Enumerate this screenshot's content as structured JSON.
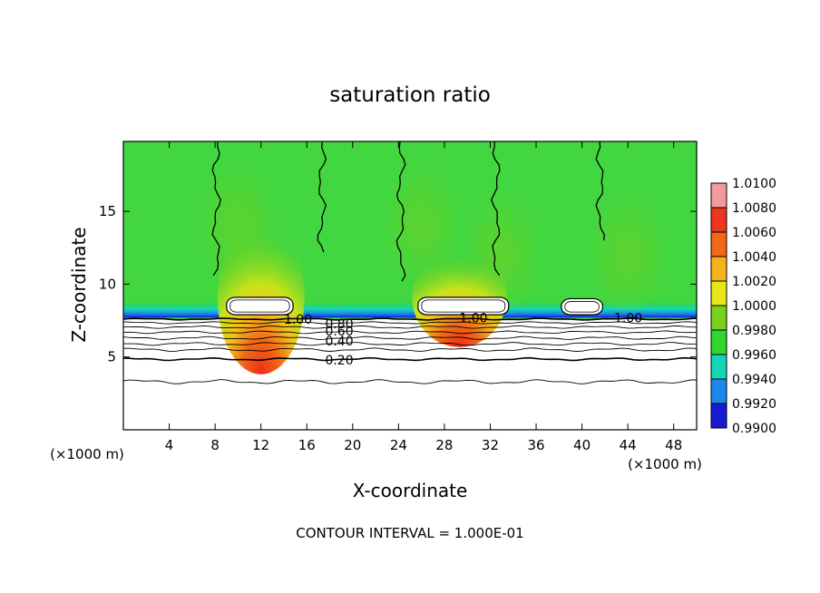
{
  "chart_data": {
    "type": "heatmap",
    "title": "saturation ratio",
    "xlabel": "X-coordinate",
    "ylabel": "Z-coordinate",
    "x_unit": "(×1000 m)",
    "x_unit_right": "(×1000 m)",
    "xlim": [
      0,
      50
    ],
    "ylim": [
      0,
      19.8
    ],
    "x_ticks": [
      4,
      8,
      12,
      16,
      20,
      24,
      28,
      32,
      36,
      40,
      44,
      48
    ],
    "y_ticks": [
      5,
      10,
      15
    ],
    "footer": "CONTOUR INTERVAL = 1.000E-01",
    "colorbar": {
      "levels": [
        "1.0100",
        "1.0080",
        "1.0060",
        "1.0040",
        "1.0020",
        "1.0000",
        "0.9980",
        "0.9960",
        "0.9940",
        "0.9920",
        "0.9900"
      ],
      "colors": [
        "#f59a9a",
        "#ee3520",
        "#f06818",
        "#f7b21a",
        "#e6e61a",
        "#7ad11a",
        "#2ed62e",
        "#14d6b4",
        "#1a86ee",
        "#1a1ad2",
        "#320a96"
      ]
    },
    "contour_labels": [
      {
        "text": "1.00",
        "x": 14.0,
        "z": 7.6
      },
      {
        "text": "0.80",
        "x": 17.6,
        "z": 7.3
      },
      {
        "text": "0.60",
        "x": 17.6,
        "z": 6.8
      },
      {
        "text": "0.40",
        "x": 17.6,
        "z": 6.1
      },
      {
        "text": "0.20",
        "x": 17.6,
        "z": 4.8
      },
      {
        "text": "1.00",
        "x": 29.3,
        "z": 7.7
      },
      {
        "text": "1.00",
        "x": 42.8,
        "z": 7.7
      }
    ],
    "cloud_cells": [
      {
        "x0": 9.0,
        "x1": 14.8,
        "z0": 7.9,
        "z1": 9.1
      },
      {
        "x0": 25.7,
        "x1": 33.6,
        "z0": 7.9,
        "z1": 9.1
      },
      {
        "x0": 38.2,
        "x1": 41.8,
        "z0": 7.9,
        "z1": 9.0
      }
    ]
  }
}
